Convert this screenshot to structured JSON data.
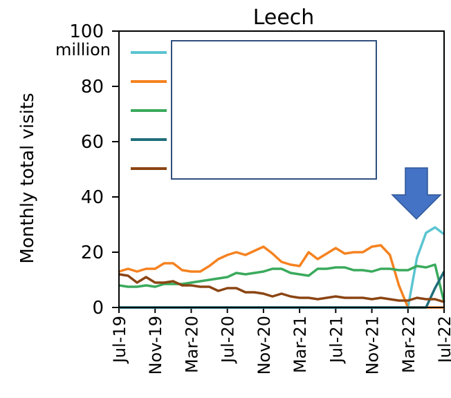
{
  "chart_data": {
    "type": "line",
    "title": "Leech",
    "ylabel": "Monthly total visits",
    "y_unit_label": "million",
    "ylim": [
      0,
      100
    ],
    "yticks": [
      0,
      20,
      40,
      60,
      80,
      100
    ],
    "x_tick_labels": [
      "Jul-19",
      "Nov-19",
      "Mar-20",
      "Jul-20",
      "Nov-20",
      "Mar-21",
      "Jul-21",
      "Nov-21",
      "Mar-22",
      "Jul-22"
    ],
    "x": [
      "Jul-19",
      "Aug-19",
      "Sep-19",
      "Oct-19",
      "Nov-19",
      "Dec-19",
      "Jan-20",
      "Feb-20",
      "Mar-20",
      "Apr-20",
      "May-20",
      "Jun-20",
      "Jul-20",
      "Aug-20",
      "Sep-20",
      "Oct-20",
      "Nov-20",
      "Dec-20",
      "Jan-21",
      "Feb-21",
      "Mar-21",
      "Apr-21",
      "May-21",
      "Jun-21",
      "Jul-21",
      "Aug-21",
      "Sep-21",
      "Oct-21",
      "Nov-21",
      "Dec-21",
      "Jan-22",
      "Feb-22",
      "Mar-22",
      "Apr-22",
      "May-22",
      "Jun-22",
      "Jul-22"
    ],
    "grid": false,
    "legend": "top-left, entry names hidden behind a blank box",
    "series": [
      {
        "color": "#5BC4D1",
        "values": [
          0,
          0,
          0,
          0,
          0,
          0,
          0,
          0,
          0,
          0,
          0,
          0,
          0,
          0,
          0,
          0,
          0,
          0,
          0,
          0,
          0,
          0,
          0,
          0,
          0,
          0,
          0,
          0,
          0,
          0,
          0,
          0,
          0,
          18,
          27,
          29,
          26.5
        ]
      },
      {
        "color": "#F58220",
        "values": [
          13,
          14,
          13,
          14,
          14,
          16,
          16,
          13.5,
          13,
          13,
          15,
          17.5,
          19,
          20,
          19,
          20.5,
          22,
          19.5,
          16.5,
          15.5,
          15,
          20,
          17.5,
          19.5,
          21.5,
          19.5,
          20,
          20,
          22,
          22.5,
          19,
          8,
          0,
          0,
          0,
          0,
          0
        ]
      },
      {
        "color": "#3AAA5C",
        "values": [
          8,
          7.5,
          7.5,
          8,
          7.5,
          8.5,
          8.5,
          8.5,
          9,
          9.5,
          10,
          10.5,
          11,
          12.5,
          12,
          12.5,
          13,
          14,
          14,
          12.5,
          12,
          11.5,
          14,
          14,
          14.5,
          14.5,
          13.5,
          13.5,
          13,
          14,
          14,
          13.5,
          13.5,
          15,
          14.5,
          15.5,
          2
        ]
      },
      {
        "color": "#1F6E7A",
        "values": [
          0,
          0,
          0,
          0,
          0,
          0,
          0,
          0,
          0,
          0,
          0,
          0,
          0,
          0,
          0,
          0,
          0,
          0,
          0,
          0,
          0,
          0,
          0,
          0,
          0,
          0,
          0,
          0,
          0,
          0,
          0,
          0,
          0,
          0,
          0,
          7,
          13
        ]
      },
      {
        "color": "#8B4513",
        "values": [
          12,
          11.5,
          9,
          11,
          9,
          9,
          9.5,
          8,
          8,
          7.5,
          7.5,
          6,
          7,
          7,
          5.5,
          5.5,
          5,
          4,
          5,
          4,
          3.5,
          3.5,
          3,
          3.5,
          4,
          3.5,
          3.5,
          3.5,
          3,
          3.5,
          3,
          2.5,
          2.5,
          3.5,
          3,
          3,
          2
        ]
      }
    ],
    "annotation": "blue down-arrow pointing at Apr-22"
  },
  "colors": {
    "arrow": "#4472C4",
    "legend_box": "#2F4F7F"
  }
}
